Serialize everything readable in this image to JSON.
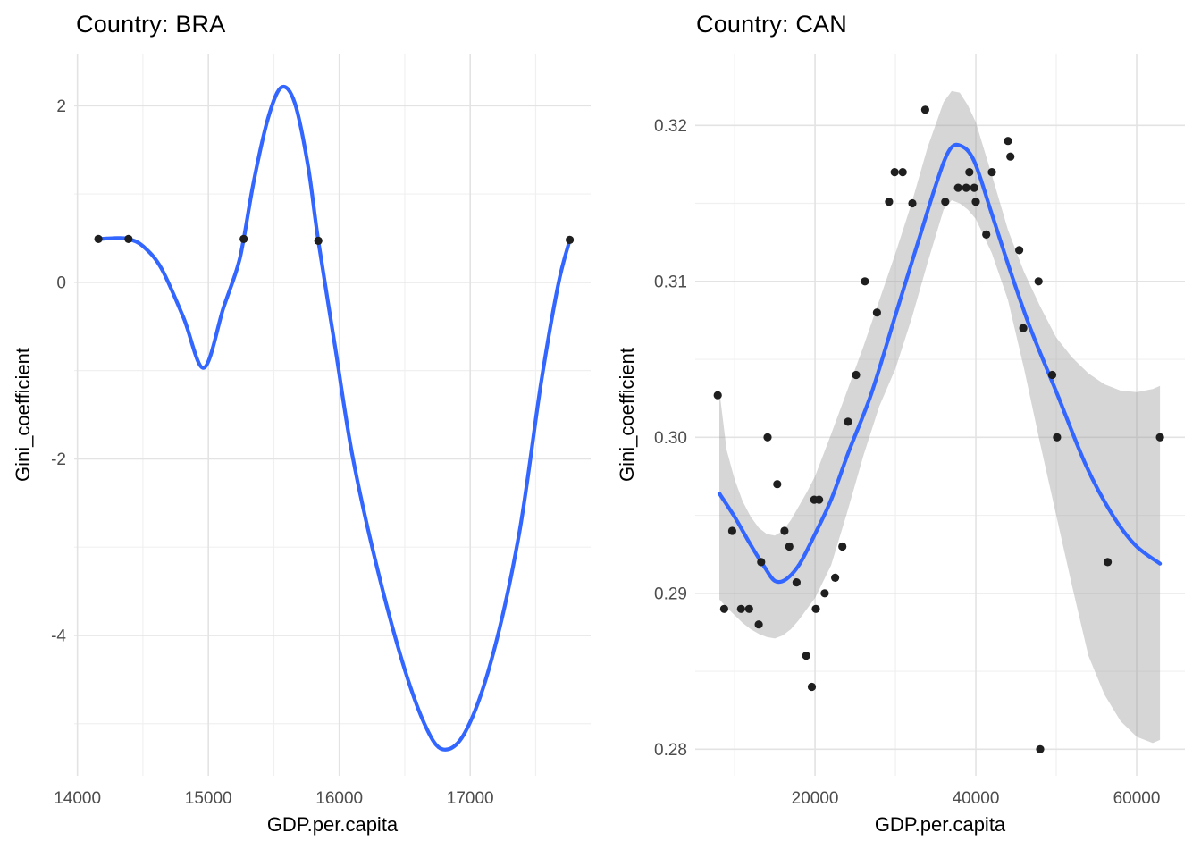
{
  "figure": {
    "background": "#ffffff",
    "grid_major_color": "#e3e3e3",
    "grid_minor_color": "#f0f0f0",
    "tick_label_color": "#4d4d4d",
    "text_color": "#000000"
  },
  "chart_data": [
    {
      "type": "scatter",
      "title": "Country: BRA",
      "xlabel": "GDP.per.capita",
      "ylabel": "Gini_coefficient",
      "x_range": [
        13975,
        17920
      ],
      "y_range": [
        -5.59,
        2.59
      ],
      "x_ticks": [
        {
          "v": 14000,
          "label": "14000"
        },
        {
          "v": 15000,
          "label": "15000"
        },
        {
          "v": 16000,
          "label": "16000"
        },
        {
          "v": 17000,
          "label": "17000"
        }
      ],
      "y_ticks": [
        {
          "v": 2,
          "label": "2"
        },
        {
          "v": 0,
          "label": "0"
        },
        {
          "v": -2,
          "label": "-2"
        },
        {
          "v": -4,
          "label": "-4"
        }
      ],
      "x_minor": [
        14500,
        15500,
        16500,
        17500
      ],
      "y_minor": [
        1,
        -1,
        -3,
        -5
      ],
      "grid": true,
      "legend": "none",
      "colors": {
        "line": "#3366FF",
        "point": "#1f1f1f",
        "ribbon": "#999999"
      },
      "ribbon_opacity": 0.4,
      "points": [
        [
          14160,
          0.49
        ],
        [
          14390,
          0.49
        ],
        [
          15270,
          0.49
        ],
        [
          15840,
          0.47
        ],
        [
          17760,
          0.48
        ]
      ],
      "smooth": [
        [
          14160,
          0.49
        ],
        [
          14300,
          0.5
        ],
        [
          14390,
          0.49
        ],
        [
          14500,
          0.41
        ],
        [
          14640,
          0.16
        ],
        [
          14810,
          -0.4
        ],
        [
          14965,
          -0.97
        ],
        [
          15115,
          -0.29
        ],
        [
          15220,
          0.16
        ],
        [
          15270,
          0.49
        ],
        [
          15350,
          1.17
        ],
        [
          15460,
          1.88
        ],
        [
          15560,
          2.21
        ],
        [
          15660,
          2.03
        ],
        [
          15760,
          1.33
        ],
        [
          15840,
          0.47
        ],
        [
          15970,
          -0.75
        ],
        [
          16100,
          -1.96
        ],
        [
          16280,
          -3.18
        ],
        [
          16480,
          -4.29
        ],
        [
          16650,
          -5.0
        ],
        [
          16790,
          -5.29
        ],
        [
          16960,
          -5.1
        ],
        [
          17160,
          -4.29
        ],
        [
          17370,
          -2.88
        ],
        [
          17540,
          -1.15
        ],
        [
          17670,
          -0.04
        ],
        [
          17760,
          0.48
        ]
      ],
      "ribbon": null
    },
    {
      "type": "scatter",
      "title": "Country: CAN",
      "xlabel": "GDP.per.capita",
      "ylabel": "Gini_coefficient",
      "x_range": [
        5100,
        66000
      ],
      "y_range": [
        0.2783,
        0.3246
      ],
      "x_ticks": [
        {
          "v": 20000,
          "label": "20000"
        },
        {
          "v": 40000,
          "label": "40000"
        },
        {
          "v": 60000,
          "label": "60000"
        }
      ],
      "y_ticks": [
        {
          "v": 0.32,
          "label": "0.32"
        },
        {
          "v": 0.31,
          "label": "0.31"
        },
        {
          "v": 0.3,
          "label": "0.30"
        },
        {
          "v": 0.29,
          "label": "0.29"
        },
        {
          "v": 0.28,
          "label": "0.28"
        }
      ],
      "x_minor": [
        10000,
        30000,
        50000
      ],
      "y_minor": [
        0.315,
        0.305,
        0.295,
        0.285
      ],
      "grid": true,
      "legend": "none",
      "colors": {
        "line": "#3366FF",
        "point": "#1f1f1f",
        "ribbon": "#999999"
      },
      "ribbon_opacity": 0.4,
      "points": [
        [
          7900,
          0.3027
        ],
        [
          33700,
          0.321
        ],
        [
          29900,
          0.317
        ],
        [
          30900,
          0.317
        ],
        [
          29200,
          0.3151
        ],
        [
          32100,
          0.315
        ],
        [
          36200,
          0.3151
        ],
        [
          40000,
          0.3151
        ],
        [
          37800,
          0.316
        ],
        [
          38800,
          0.316
        ],
        [
          39800,
          0.316
        ],
        [
          26200,
          0.31
        ],
        [
          27700,
          0.308
        ],
        [
          25100,
          0.304
        ],
        [
          24100,
          0.301
        ],
        [
          44000,
          0.319
        ],
        [
          44300,
          0.318
        ],
        [
          39200,
          0.317
        ],
        [
          42000,
          0.317
        ],
        [
          41300,
          0.313
        ],
        [
          45400,
          0.312
        ],
        [
          47800,
          0.31
        ],
        [
          45900,
          0.307
        ],
        [
          49500,
          0.304
        ],
        [
          14100,
          0.3
        ],
        [
          15300,
          0.297
        ],
        [
          19900,
          0.296
        ],
        [
          20500,
          0.296
        ],
        [
          9700,
          0.294
        ],
        [
          16200,
          0.294
        ],
        [
          16800,
          0.293
        ],
        [
          23400,
          0.293
        ],
        [
          13300,
          0.292
        ],
        [
          22500,
          0.291
        ],
        [
          17700,
          0.2907
        ],
        [
          21200,
          0.29
        ],
        [
          8700,
          0.289
        ],
        [
          10800,
          0.289
        ],
        [
          11800,
          0.289
        ],
        [
          20100,
          0.289
        ],
        [
          13000,
          0.288
        ],
        [
          18900,
          0.286
        ],
        [
          19600,
          0.284
        ],
        [
          50100,
          0.3
        ],
        [
          62900,
          0.3
        ],
        [
          56400,
          0.292
        ],
        [
          48000,
          0.28
        ]
      ],
      "smooth": [
        [
          8100,
          0.2964
        ],
        [
          10000,
          0.2949
        ],
        [
          12000,
          0.2931
        ],
        [
          13700,
          0.2917
        ],
        [
          15000,
          0.2908
        ],
        [
          16400,
          0.2909
        ],
        [
          18100,
          0.2919
        ],
        [
          20000,
          0.2938
        ],
        [
          22000,
          0.296
        ],
        [
          24200,
          0.2991
        ],
        [
          27000,
          0.3028
        ],
        [
          30100,
          0.308
        ],
        [
          33100,
          0.313
        ],
        [
          35100,
          0.3163
        ],
        [
          36700,
          0.3184
        ],
        [
          38100,
          0.3187
        ],
        [
          39800,
          0.3177
        ],
        [
          42000,
          0.3143
        ],
        [
          44200,
          0.3108
        ],
        [
          46700,
          0.3071
        ],
        [
          50100,
          0.3028
        ],
        [
          53700,
          0.2982
        ],
        [
          56900,
          0.2951
        ],
        [
          59800,
          0.2931
        ],
        [
          62900,
          0.2919
        ]
      ],
      "ribbon": {
        "upper": [
          [
            8100,
            0.303
          ],
          [
            9000,
            0.2992
          ],
          [
            10000,
            0.2973
          ],
          [
            11000,
            0.2959
          ],
          [
            12000,
            0.2949
          ],
          [
            13000,
            0.2942
          ],
          [
            14000,
            0.2938
          ],
          [
            15000,
            0.2937
          ],
          [
            16000,
            0.294
          ],
          [
            17000,
            0.2947
          ],
          [
            18000,
            0.2956
          ],
          [
            19000,
            0.2965
          ],
          [
            20000,
            0.2975
          ],
          [
            22000,
            0.3002
          ],
          [
            24000,
            0.303
          ],
          [
            26000,
            0.3058
          ],
          [
            28000,
            0.3088
          ],
          [
            30000,
            0.3118
          ],
          [
            32000,
            0.315
          ],
          [
            34000,
            0.3186
          ],
          [
            36000,
            0.3215
          ],
          [
            37000,
            0.3222
          ],
          [
            38000,
            0.3221
          ],
          [
            39000,
            0.3213
          ],
          [
            40000,
            0.3202
          ],
          [
            42000,
            0.3168
          ],
          [
            44000,
            0.3133
          ],
          [
            46000,
            0.3106
          ],
          [
            48000,
            0.3084
          ],
          [
            50000,
            0.3064
          ],
          [
            52000,
            0.3051
          ],
          [
            54000,
            0.3041
          ],
          [
            56000,
            0.3034
          ],
          [
            58000,
            0.303
          ],
          [
            60000,
            0.3029
          ],
          [
            62000,
            0.3031
          ],
          [
            62900,
            0.3033
          ]
        ],
        "lower": [
          [
            8100,
            0.2896
          ],
          [
            9000,
            0.2891
          ],
          [
            10000,
            0.2886
          ],
          [
            11000,
            0.2881
          ],
          [
            12000,
            0.2877
          ],
          [
            13000,
            0.2874
          ],
          [
            14000,
            0.2872
          ],
          [
            15000,
            0.2871
          ],
          [
            16000,
            0.2873
          ],
          [
            17000,
            0.2877
          ],
          [
            18000,
            0.2883
          ],
          [
            19000,
            0.289
          ],
          [
            20000,
            0.2897
          ],
          [
            22000,
            0.2918
          ],
          [
            24000,
            0.2952
          ],
          [
            26000,
            0.2988
          ],
          [
            28000,
            0.302
          ],
          [
            30000,
            0.3044
          ],
          [
            32000,
            0.3076
          ],
          [
            34000,
            0.3112
          ],
          [
            36000,
            0.3146
          ],
          [
            37000,
            0.3152
          ],
          [
            38000,
            0.315
          ],
          [
            39000,
            0.3146
          ],
          [
            40000,
            0.314
          ],
          [
            42000,
            0.3118
          ],
          [
            44000,
            0.3088
          ],
          [
            46000,
            0.3044
          ],
          [
            48000,
            0.2996
          ],
          [
            50000,
            0.295
          ],
          [
            52000,
            0.2904
          ],
          [
            54000,
            0.286
          ],
          [
            56000,
            0.2835
          ],
          [
            58000,
            0.2818
          ],
          [
            60000,
            0.2808
          ],
          [
            62000,
            0.2804
          ],
          [
            62900,
            0.2806
          ]
        ]
      }
    }
  ]
}
